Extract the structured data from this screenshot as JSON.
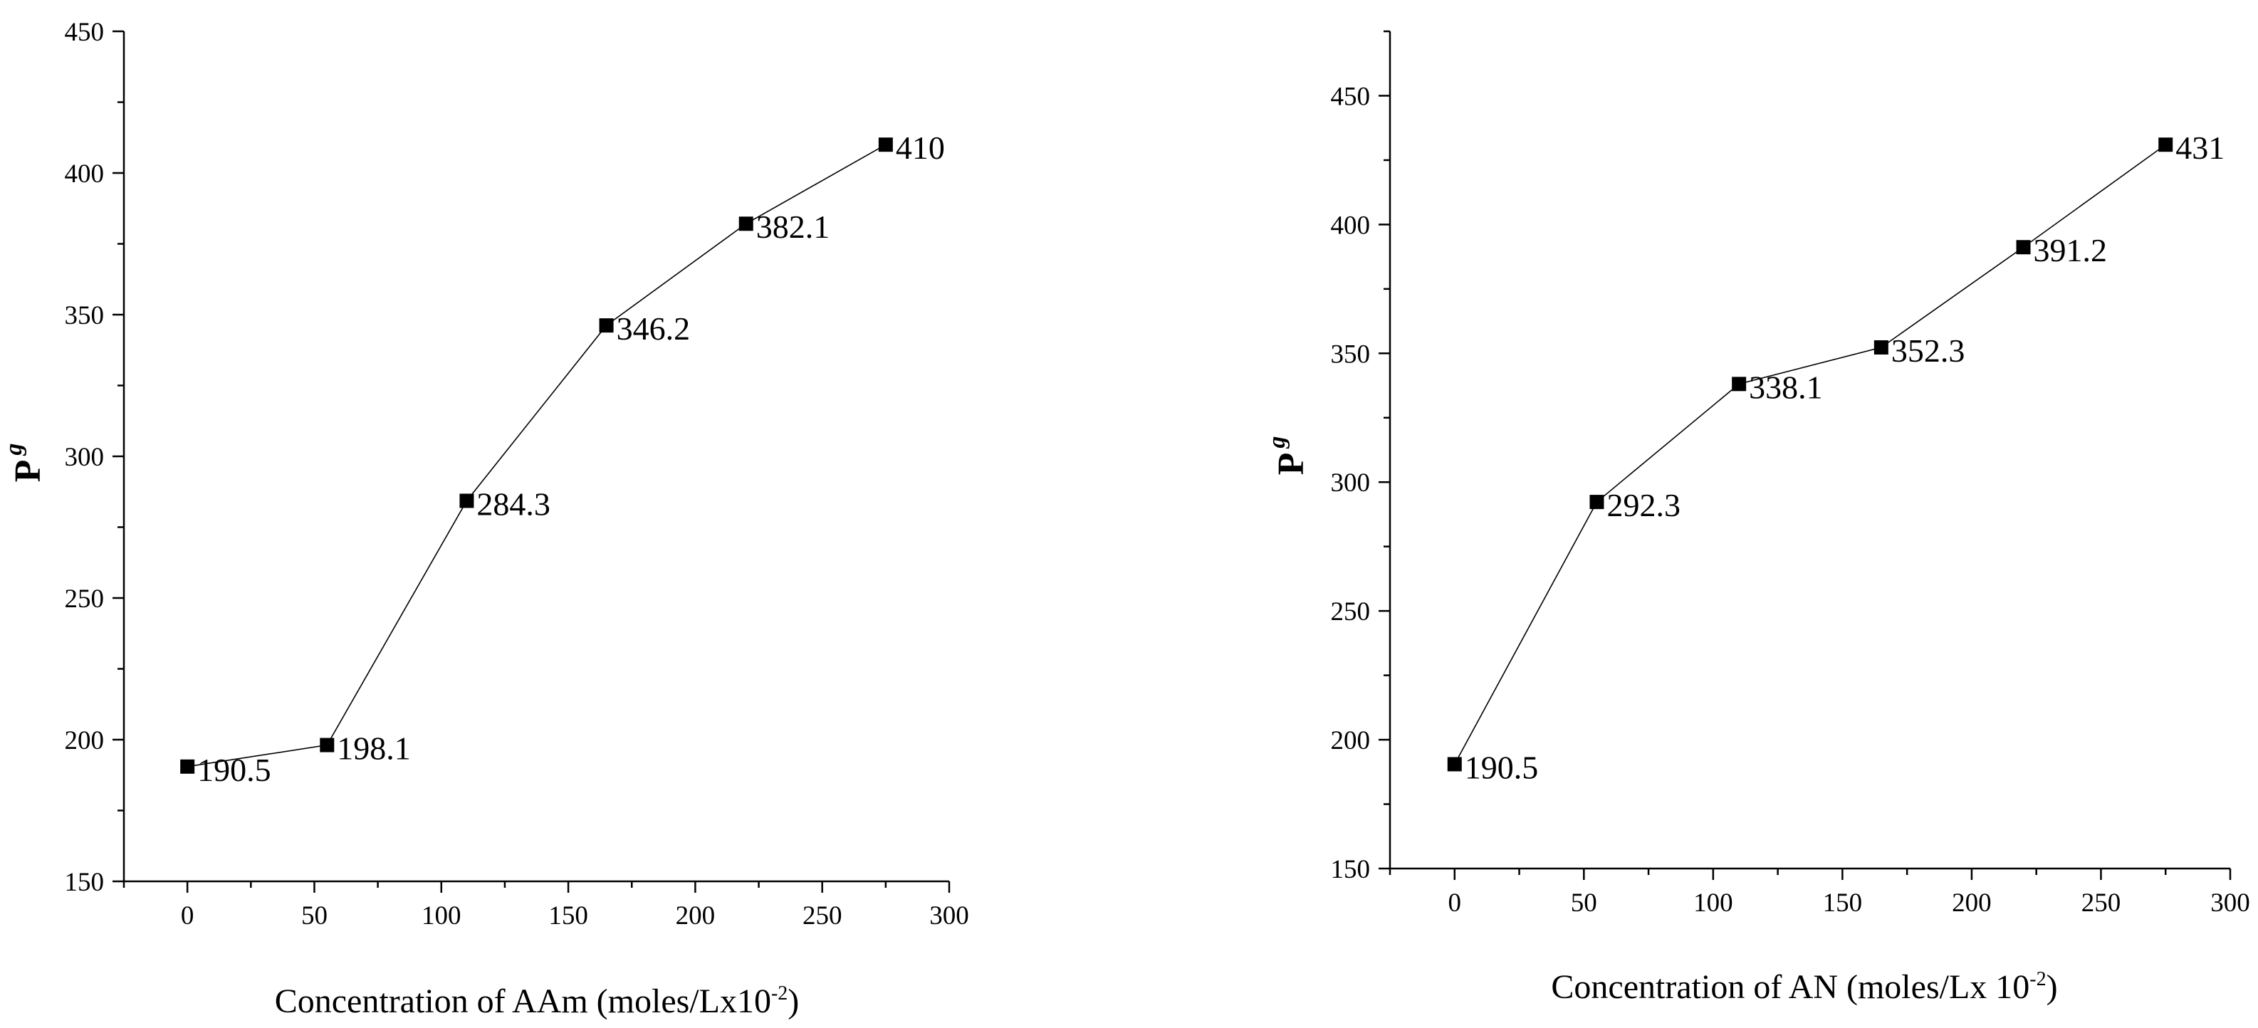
{
  "chart_data": [
    {
      "type": "line",
      "x": [
        0,
        55,
        110,
        165,
        220,
        275
      ],
      "series": [
        {
          "values": [
            190.5,
            198.1,
            284.3,
            346.2,
            382.1,
            410
          ]
        }
      ],
      "data_labels": [
        "190.5",
        "198.1",
        "284.3",
        "346.2",
        "382.1",
        "410"
      ],
      "xlabel": "Concentration of AAm (moles/Lx10",
      "xlabel_sup": "-2",
      "xlabel_tail": ")",
      "ylabel_main": "P",
      "ylabel_sub": "g",
      "xlim": [
        -25,
        300
      ],
      "ylim": [
        150,
        450
      ],
      "xticks": [
        0,
        50,
        100,
        150,
        200,
        250,
        300
      ],
      "yticks": [
        150,
        200,
        250,
        300,
        350,
        400,
        450
      ],
      "grid": false,
      "marker": "square"
    },
    {
      "type": "line",
      "x": [
        0,
        55,
        110,
        165,
        220,
        275
      ],
      "series": [
        {
          "values": [
            190.5,
            292.3,
            338.1,
            352.3,
            391.2,
            431
          ]
        }
      ],
      "data_labels": [
        "190.5",
        "292.3",
        "338.1",
        "352.3",
        "391.2",
        "431"
      ],
      "xlabel": "Concentration of AN (moles/Lx 10",
      "xlabel_sup": "-2",
      "xlabel_tail": ")",
      "ylabel_main": "P",
      "ylabel_sub": "g",
      "xlim": [
        -25,
        300
      ],
      "ylim": [
        150,
        475
      ],
      "xticks": [
        0,
        50,
        100,
        150,
        200,
        250,
        300
      ],
      "yticks": [
        150,
        200,
        250,
        300,
        350,
        400,
        450
      ],
      "grid": false,
      "marker": "square"
    }
  ]
}
